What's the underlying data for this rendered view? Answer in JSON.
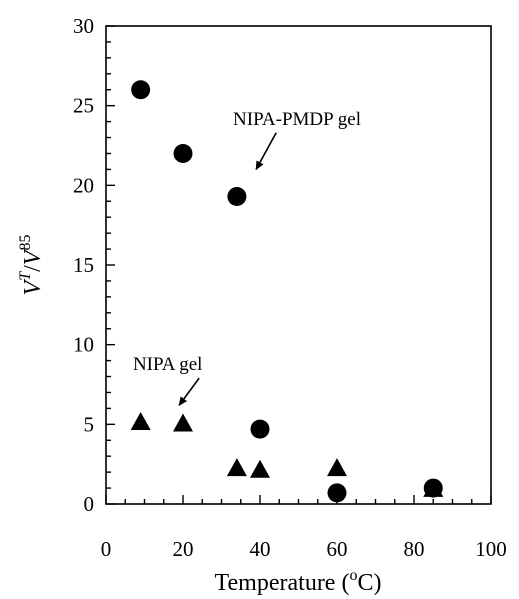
{
  "chart_data": {
    "type": "scatter",
    "xlabel": "Temperature (",
    "xlabel_sup": "o",
    "xlabel_end": "C)",
    "ylabel_base1": "V",
    "ylabel_sup1": "T",
    "ylabel_mid": "/",
    "ylabel_base2": "V",
    "ylabel_sup2": "85",
    "xlim": [
      0,
      100
    ],
    "ylim": [
      0,
      30
    ],
    "xticks": [
      0,
      20,
      40,
      60,
      80,
      100
    ],
    "yticks": [
      0,
      5,
      10,
      15,
      20,
      25,
      30
    ],
    "grid": false,
    "series": [
      {
        "name": "NIPA-PMDP gel",
        "marker": "circle",
        "color": "#000000",
        "x": [
          9,
          20,
          34,
          40,
          60,
          85
        ],
        "y": [
          26,
          22,
          19.3,
          4.7,
          0.7,
          1.0
        ]
      },
      {
        "name": "NIPA gel",
        "marker": "triangle",
        "color": "#000000",
        "x": [
          9,
          20,
          34,
          40,
          60,
          85
        ],
        "y": [
          5.1,
          5.0,
          2.2,
          2.1,
          2.2,
          0.9
        ]
      }
    ],
    "annotations": [
      {
        "text": "NIPA-PMDP gel",
        "x": 33,
        "y": 23.8,
        "arrow_to": [
          39,
          21
        ]
      },
      {
        "text": "NIPA gel",
        "x": 7,
        "y": 8.4,
        "arrow_to": [
          19,
          6.2
        ]
      }
    ]
  }
}
